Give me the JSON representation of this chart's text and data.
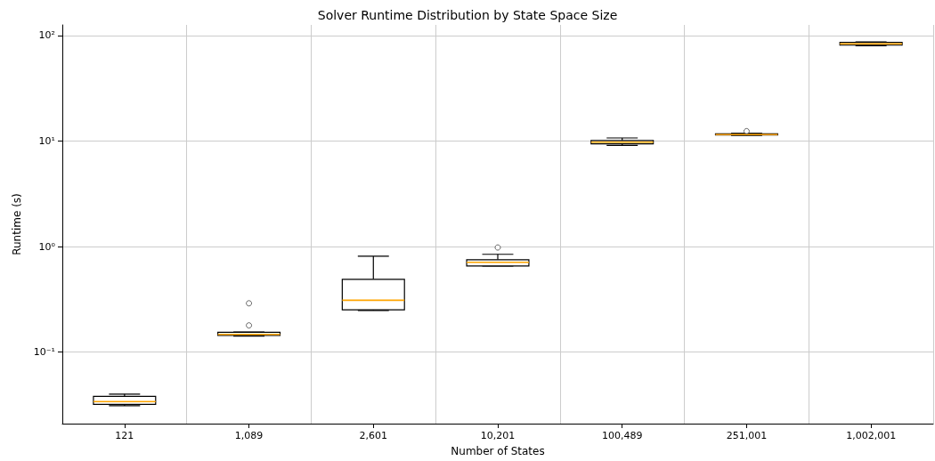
{
  "chart_data": {
    "type": "box",
    "title": "Solver Runtime Distribution by State Space Size",
    "xlabel": "Number of States",
    "ylabel": "Runtime (s)",
    "categories": [
      "121",
      "1,089",
      "2,601",
      "10,201",
      "100,489",
      "251,001",
      "1,002,001"
    ],
    "series": [
      {
        "color": "#000000",
        "boxes": [
          {
            "low": 0.031,
            "q1": 0.032,
            "median": 0.034,
            "q3": 0.038,
            "high": 0.04
          },
          {
            "low": 0.142,
            "q1": 0.144,
            "median": 0.147,
            "q3": 0.154,
            "high": 0.155
          },
          {
            "low": 0.248,
            "q1": 0.252,
            "median": 0.31,
            "q3": 0.49,
            "high": 0.81
          },
          {
            "low": 0.655,
            "q1": 0.655,
            "median": 0.71,
            "q3": 0.75,
            "high": 0.845
          },
          {
            "low": 9.1,
            "q1": 9.4,
            "median": 9.75,
            "q3": 10.1,
            "high": 10.7
          },
          {
            "low": 11.3,
            "q1": 11.4,
            "median": 11.5,
            "q3": 11.7,
            "high": 11.8
          },
          {
            "low": 80,
            "q1": 81,
            "median": 83.5,
            "q3": 86,
            "high": 87
          }
        ]
      },
      {
        "type": "scatter",
        "color": "#444444",
        "marker": "circle",
        "x": [
          "1,089",
          "1,089",
          "10,201",
          "251,001"
        ],
        "values": [
          0.179,
          0.29,
          0.98,
          12.4
        ]
      }
    ],
    "log": "y",
    "ylim": [
      0.021,
      126
    ],
    "yticks": [
      {
        "value": 0.1,
        "label": "10⁻¹"
      },
      {
        "value": 1,
        "label": "10⁰"
      },
      {
        "value": 10,
        "label": "10¹"
      },
      {
        "value": 100,
        "label": "10²"
      }
    ],
    "grid": true
  }
}
